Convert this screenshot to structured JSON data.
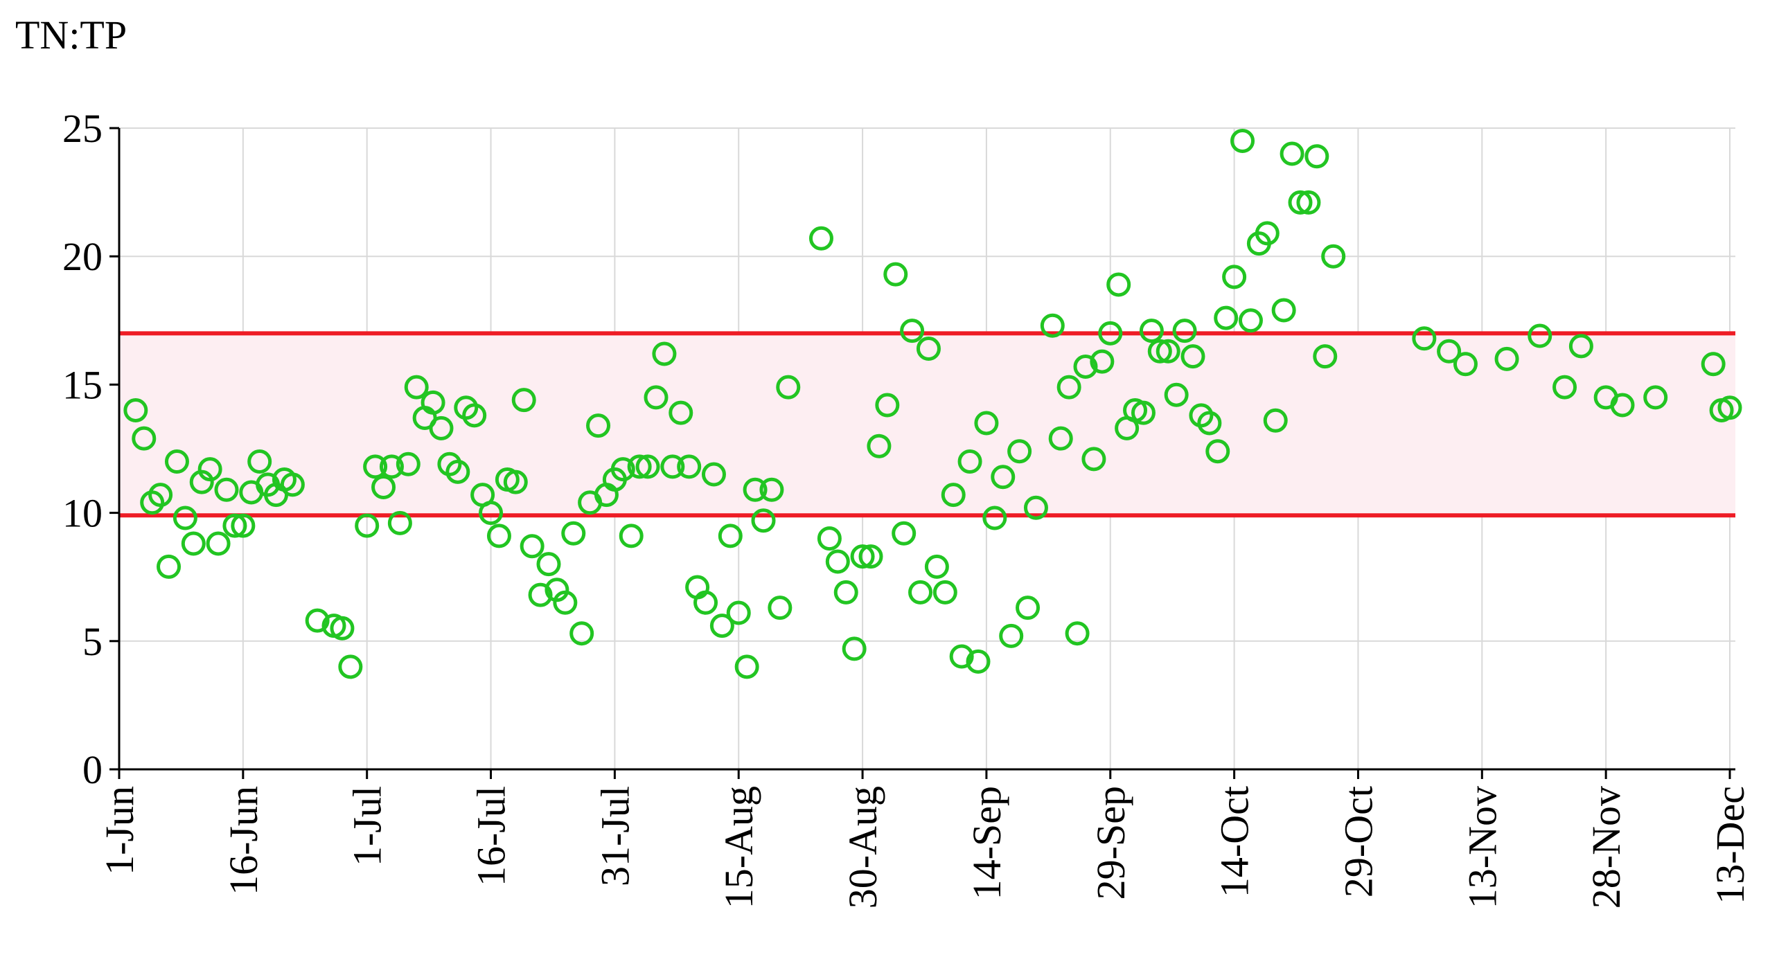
{
  "chart_data": {
    "type": "scatter",
    "y_label": "TN:TP",
    "x": [
      "3-Jun",
      "4-Jun",
      "5-Jun",
      "6-Jun",
      "7-Jun",
      "8-Jun",
      "9-Jun",
      "10-Jun",
      "11-Jun",
      "12-Jun",
      "13-Jun",
      "14-Jun",
      "15-Jun",
      "16-Jun",
      "17-Jun",
      "18-Jun",
      "19-Jun",
      "20-Jun",
      "21-Jun",
      "22-Jun",
      "25-Jun",
      "27-Jun",
      "28-Jun",
      "29-Jun",
      "1-Jul",
      "2-Jul",
      "3-Jul",
      "4-Jul",
      "5-Jul",
      "6-Jul",
      "7-Jul",
      "8-Jul",
      "9-Jul",
      "10-Jul",
      "11-Jul",
      "12-Jul",
      "13-Jul",
      "14-Jul",
      "15-Jul",
      "16-Jul",
      "17-Jul",
      "18-Jul",
      "19-Jul",
      "20-Jul",
      "21-Jul",
      "22-Jul",
      "23-Jul",
      "24-Jul",
      "25-Jul",
      "26-Jul",
      "27-Jul",
      "28-Jul",
      "29-Jul",
      "30-Jul",
      "31-Jul",
      "1-Aug",
      "2-Aug",
      "3-Aug",
      "4-Aug",
      "5-Aug",
      "6-Aug",
      "7-Aug",
      "8-Aug",
      "9-Aug",
      "10-Aug",
      "11-Aug",
      "12-Aug",
      "13-Aug",
      "14-Aug",
      "15-Aug",
      "16-Aug",
      "17-Aug",
      "18-Aug",
      "19-Aug",
      "20-Aug",
      "21-Aug",
      "25-Aug",
      "26-Aug",
      "27-Aug",
      "28-Aug",
      "29-Aug",
      "30-Aug",
      "31-Aug",
      "1-Sep",
      "2-Sep",
      "3-Sep",
      "4-Sep",
      "5-Sep",
      "6-Sep",
      "7-Sep",
      "8-Sep",
      "9-Sep",
      "10-Sep",
      "11-Sep",
      "12-Sep",
      "13-Sep",
      "14-Sep",
      "15-Sep",
      "16-Sep",
      "17-Sep",
      "18-Sep",
      "19-Sep",
      "20-Sep",
      "22-Sep",
      "23-Sep",
      "24-Sep",
      "25-Sep",
      "26-Sep",
      "27-Sep",
      "28-Sep",
      "29-Sep",
      "30-Sep",
      "1-Oct",
      "2-Oct",
      "3-Oct",
      "4-Oct",
      "5-Oct",
      "6-Oct",
      "7-Oct",
      "8-Oct",
      "9-Oct",
      "10-Oct",
      "11-Oct",
      "12-Oct",
      "13-Oct",
      "14-Oct",
      "15-Oct",
      "16-Oct",
      "17-Oct",
      "18-Oct",
      "19-Oct",
      "20-Oct",
      "21-Oct",
      "22-Oct",
      "23-Oct",
      "24-Oct",
      "25-Oct",
      "26-Oct",
      "6-Nov",
      "9-Nov",
      "11-Nov",
      "16-Nov",
      "20-Nov",
      "23-Nov",
      "25-Nov",
      "28-Nov",
      "30-Nov",
      "4-Dec",
      "11-Dec",
      "12-Dec",
      "13-Dec"
    ],
    "values": [
      14.0,
      12.9,
      10.4,
      10.7,
      7.9,
      12.0,
      9.8,
      8.8,
      11.2,
      11.7,
      8.8,
      10.9,
      9.5,
      9.5,
      10.8,
      12.0,
      11.1,
      10.7,
      11.3,
      11.1,
      5.8,
      5.6,
      5.5,
      4.0,
      9.5,
      11.8,
      11.0,
      11.8,
      9.6,
      11.9,
      14.9,
      13.7,
      14.3,
      13.3,
      11.9,
      11.6,
      14.1,
      13.8,
      10.7,
      10.0,
      9.1,
      11.3,
      11.2,
      14.4,
      8.7,
      6.8,
      8.0,
      7.0,
      6.5,
      9.2,
      5.3,
      10.4,
      13.4,
      10.7,
      11.3,
      11.7,
      9.1,
      11.8,
      11.8,
      14.5,
      16.2,
      11.8,
      13.9,
      11.8,
      7.1,
      6.5,
      11.5,
      5.6,
      9.1,
      6.1,
      4.0,
      10.9,
      9.7,
      10.9,
      6.3,
      14.9,
      20.7,
      9.0,
      8.1,
      6.9,
      4.7,
      8.3,
      8.3,
      12.6,
      14.2,
      19.3,
      9.2,
      17.1,
      6.9,
      16.4,
      7.9,
      6.9,
      10.7,
      4.4,
      12.0,
      4.2,
      13.5,
      9.8,
      11.4,
      5.2,
      12.4,
      6.3,
      10.2,
      17.3,
      12.9,
      14.9,
      5.3,
      15.7,
      12.1,
      15.9,
      17.0,
      18.9,
      13.3,
      14.0,
      13.9,
      17.1,
      16.3,
      16.3,
      14.6,
      17.1,
      16.1,
      13.8,
      13.5,
      12.4,
      17.6,
      19.2,
      24.5,
      17.5,
      20.5,
      20.9,
      13.6,
      17.9,
      24.0,
      22.1,
      22.1,
      23.9,
      16.1,
      20.0,
      16.8,
      16.3,
      15.8,
      16.0,
      16.9,
      14.9,
      16.5,
      14.5,
      14.2,
      14.5,
      15.8,
      14.0,
      14.1
    ],
    "color": "#22c522",
    "band": [
      9.9,
      17
    ],
    "band_line_color": "#ee1c25",
    "band_fill_color": "#fdeef2",
    "xlim": [
      "1-Jun",
      "13-Dec"
    ],
    "xticks": [
      "1-Jun",
      "16-Jun",
      "1-Jul",
      "16-Jul",
      "31-Jul",
      "15-Aug",
      "30-Aug",
      "14-Sep",
      "29-Sep",
      "14-Oct",
      "29-Oct",
      "13-Nov",
      "28-Nov",
      "13-Dec"
    ],
    "ylim": [
      0,
      25
    ],
    "yticks": [
      0,
      5,
      10,
      15,
      20,
      25
    ],
    "grid": true
  }
}
